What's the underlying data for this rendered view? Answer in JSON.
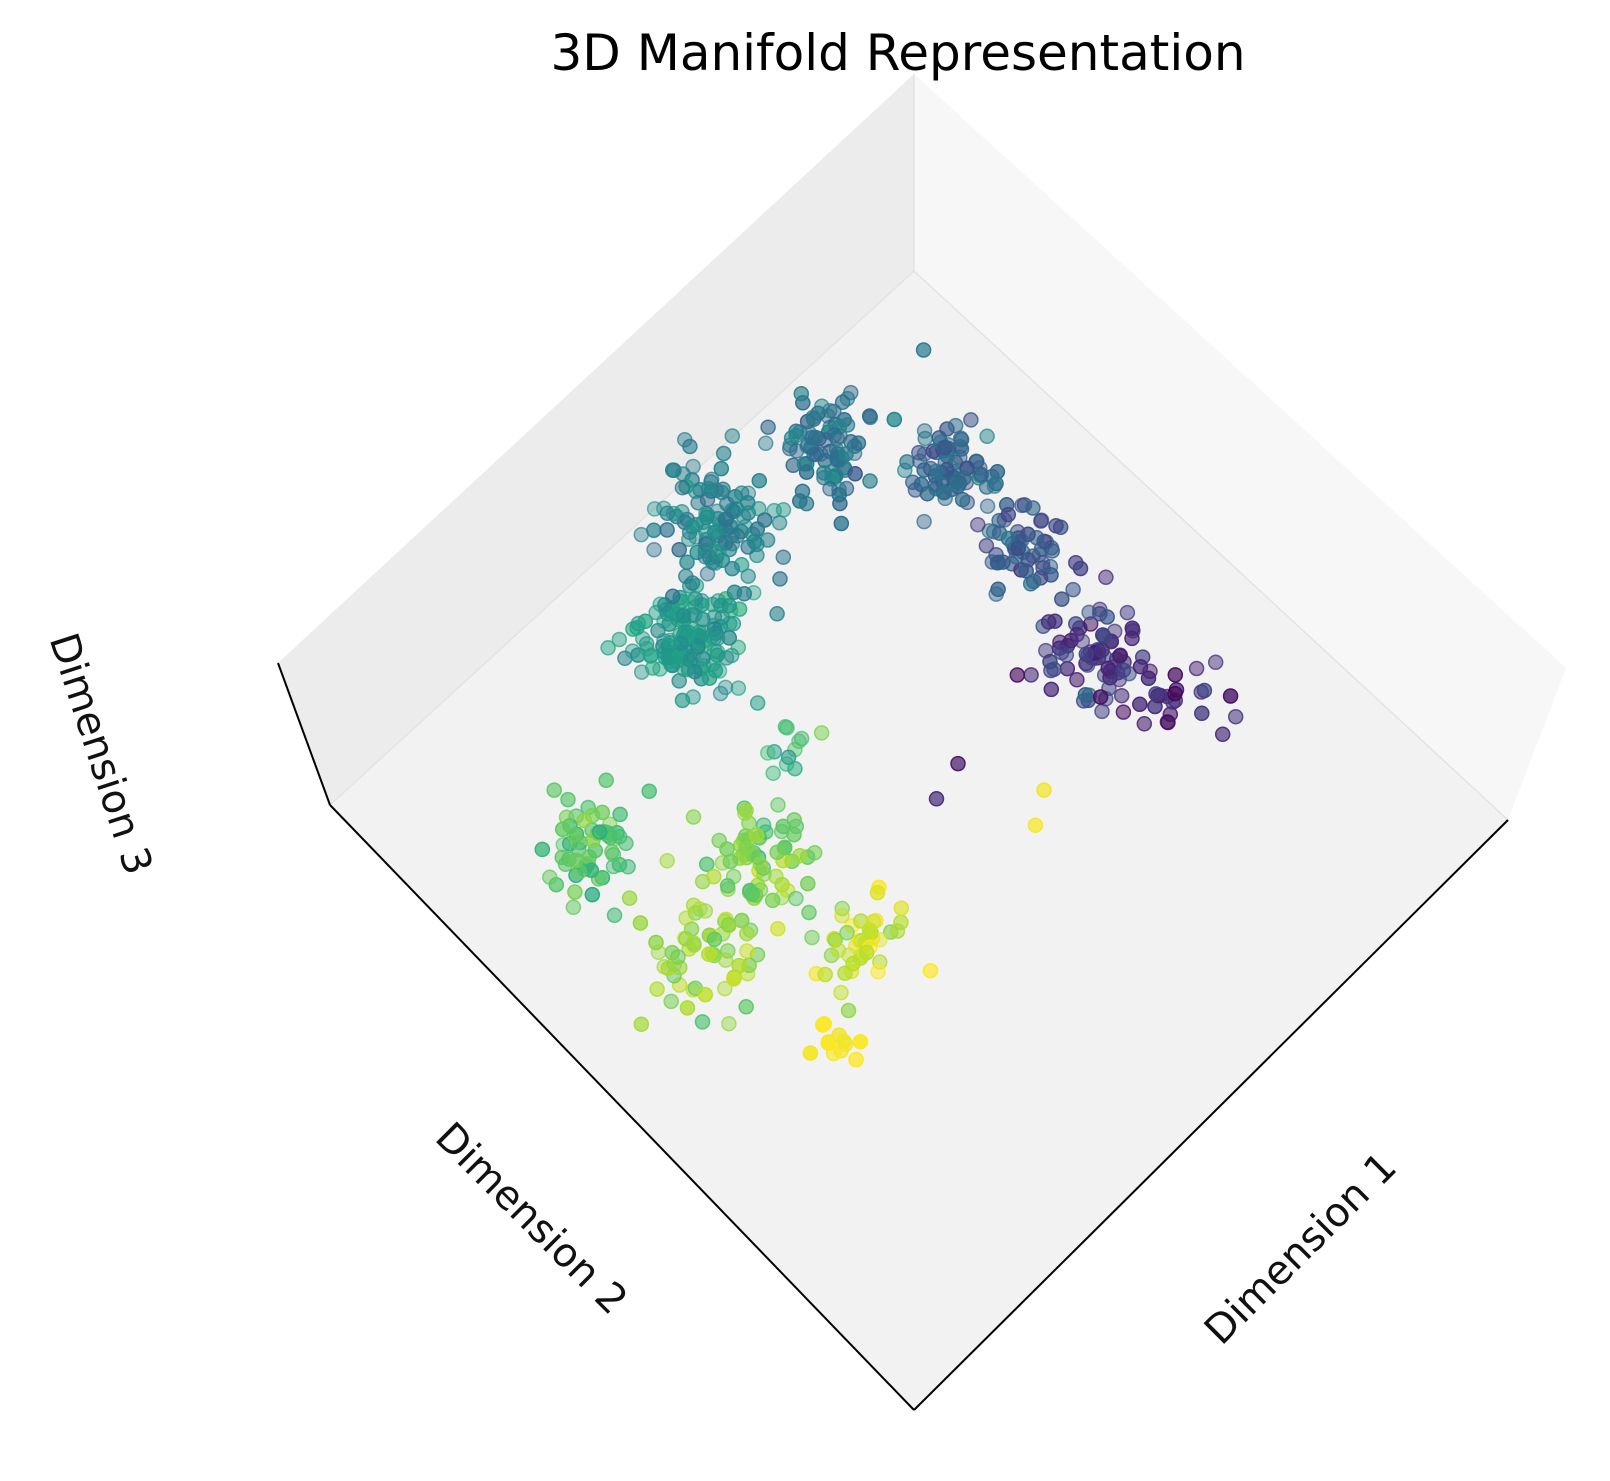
{
  "chart_data": {
    "type": "scatter",
    "projection": "3d",
    "title": "3D Manifold Representation",
    "xlabel": "Dimension 1",
    "ylabel": "Dimension 2",
    "zlabel": "Dimension 3",
    "colormap": "viridis",
    "grid": false,
    "legend": "none",
    "pane_colors": {
      "floor": "#f2f2f2",
      "back_left": "#ececec",
      "back_right": "#f7f7f7"
    },
    "clusters": [
      {
        "x": -0.53,
        "y": 0.35,
        "n": 140,
        "spread": 0.065,
        "c": 0.54,
        "cspread": 0.05,
        "a": 0.55
      },
      {
        "x": -0.46,
        "y": 0.6,
        "n": 110,
        "spread": 0.07,
        "c": 0.45,
        "cspread": 0.05,
        "a": 0.55
      },
      {
        "x": -0.2,
        "y": 0.78,
        "n": 85,
        "spread": 0.06,
        "c": 0.38,
        "cspread": 0.05,
        "a": 0.6
      },
      {
        "x": 0.1,
        "y": 0.72,
        "n": 70,
        "spread": 0.06,
        "c": 0.33,
        "cspread": 0.05,
        "a": 0.6
      },
      {
        "x": 0.27,
        "y": 0.55,
        "n": 60,
        "spread": 0.06,
        "c": 0.27,
        "cspread": 0.05,
        "a": 0.6
      },
      {
        "x": 0.42,
        "y": 0.3,
        "n": 75,
        "spread": 0.065,
        "c": 0.15,
        "cspread": 0.07,
        "a": 0.6
      },
      {
        "x": 0.6,
        "y": 0.2,
        "n": 25,
        "spread": 0.05,
        "c": 0.1,
        "cspread": 0.05,
        "a": 0.65
      },
      {
        "x": -0.76,
        "y": -0.13,
        "n": 60,
        "spread": 0.06,
        "c": 0.72,
        "cspread": 0.05,
        "a": 0.6
      },
      {
        "x": -0.36,
        "y": -0.18,
        "n": 70,
        "spread": 0.07,
        "c": 0.8,
        "cspread": 0.06,
        "a": 0.6
      },
      {
        "x": -0.5,
        "y": -0.37,
        "n": 55,
        "spread": 0.08,
        "c": 0.86,
        "cspread": 0.07,
        "a": 0.6
      },
      {
        "x": -0.13,
        "y": -0.35,
        "n": 40,
        "spread": 0.05,
        "c": 0.93,
        "cspread": 0.06,
        "a": 0.6
      },
      {
        "x": -0.18,
        "y": -0.58,
        "n": 12,
        "spread": 0.03,
        "c": 0.99,
        "cspread": 0.01,
        "a": 0.8
      },
      {
        "x": -0.28,
        "y": 0.1,
        "n": 12,
        "spread": 0.05,
        "c": 0.68,
        "cspread": 0.08,
        "a": 0.55
      }
    ],
    "outliers": [
      {
        "x": 0.02,
        "y": 1.0,
        "c": 0.4
      },
      {
        "x": 0.3,
        "y": 0.0,
        "c": 0.98
      },
      {
        "x": 0.28,
        "y": -0.08,
        "c": 0.99
      },
      {
        "x": 0.1,
        "y": 0.06,
        "c": 0.06
      },
      {
        "x": 0.05,
        "y": -0.02,
        "c": 0.12
      }
    ]
  }
}
